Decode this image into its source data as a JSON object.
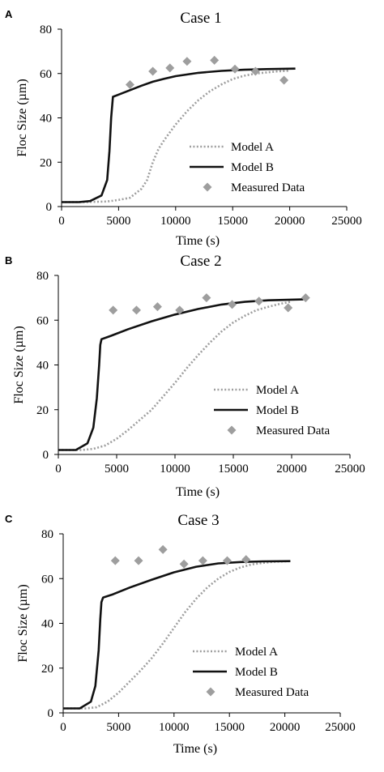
{
  "figure": {
    "colors": {
      "model_a": "#9e9e9e",
      "model_b": "#111111",
      "measured": "#9e9e9e"
    }
  },
  "chart_data": [
    {
      "panel_label": "A",
      "type": "line",
      "title": "Case 1",
      "xlabel": "Time (s)",
      "ylabel": "Floc Size (µm)",
      "xlim": [
        0,
        25000
      ],
      "ylim": [
        0,
        80
      ],
      "xticks": [
        0,
        5000,
        10000,
        15000,
        20000,
        25000
      ],
      "yticks": [
        0,
        20,
        40,
        60,
        80
      ],
      "legend_position": "bottom-right",
      "series": [
        {
          "name": "Model A",
          "kind": "line",
          "style": "dotted",
          "color": "#9e9e9e",
          "x": [
            0,
            2000,
            4000,
            5000,
            6000,
            7000,
            7500,
            8000,
            8500,
            9000,
            10000,
            11000,
            12000,
            13000,
            14000,
            15000,
            16000,
            17000,
            18000,
            19000,
            20000
          ],
          "y": [
            2,
            2,
            2.3,
            3,
            4,
            8,
            12,
            20,
            26,
            30,
            37,
            43,
            48,
            52,
            55,
            57.5,
            59,
            60,
            60.5,
            61,
            61.3
          ]
        },
        {
          "name": "Model B",
          "kind": "line",
          "style": "solid",
          "color": "#111111",
          "x": [
            0,
            1500,
            2500,
            3500,
            4000,
            4200,
            4350,
            4500,
            5000,
            6000,
            7000,
            8000,
            9000,
            10000,
            12000,
            14000,
            16000,
            18000,
            20500
          ],
          "y": [
            2,
            2,
            2.5,
            5,
            12,
            25,
            40,
            49.5,
            50.5,
            52.5,
            54.5,
            56.3,
            57.6,
            58.8,
            60.3,
            61.2,
            61.7,
            62,
            62.2
          ]
        },
        {
          "name": "Measured Data",
          "kind": "scatter",
          "marker": "diamond",
          "color": "#9e9e9e",
          "x": [
            6000,
            8000,
            9500,
            11000,
            13400,
            15200,
            17000,
            19500
          ],
          "y": [
            55,
            61,
            62.5,
            65.5,
            66,
            62,
            61,
            57
          ]
        }
      ]
    },
    {
      "panel_label": "B",
      "type": "line",
      "title": "Case 2",
      "xlabel": "Time (s)",
      "ylabel": "Floc Size (µm)",
      "xlim": [
        0,
        25000
      ],
      "ylim": [
        0,
        80
      ],
      "xticks": [
        0,
        5000,
        10000,
        15000,
        20000,
        25000
      ],
      "yticks": [
        0,
        20,
        40,
        60,
        80
      ],
      "legend_position": "bottom-right",
      "series": [
        {
          "name": "Model A",
          "kind": "line",
          "style": "dotted",
          "color": "#9e9e9e",
          "x": [
            0,
            2000,
            3000,
            4000,
            5000,
            6000,
            7000,
            8000,
            9000,
            10000,
            11000,
            12000,
            13000,
            14000,
            15000,
            16000,
            17000,
            18000,
            19000,
            20000
          ],
          "y": [
            2,
            2,
            2.5,
            4,
            7,
            11,
            15.5,
            20,
            26,
            32,
            38.5,
            44.5,
            50,
            55,
            59,
            62,
            64.5,
            66,
            67.3,
            68.3
          ]
        },
        {
          "name": "Model B",
          "kind": "line",
          "style": "solid",
          "color": "#111111",
          "x": [
            0,
            1500,
            2500,
            3000,
            3300,
            3500,
            3600,
            3700,
            4500,
            6000,
            8000,
            10000,
            12000,
            14000,
            16000,
            18000,
            21000
          ],
          "y": [
            2,
            2,
            5,
            12,
            25,
            40,
            49,
            51.5,
            53,
            56,
            59.5,
            62.5,
            65,
            67,
            68.2,
            68.9,
            69.3
          ]
        },
        {
          "name": "Measured Data",
          "kind": "scatter",
          "marker": "diamond",
          "color": "#9e9e9e",
          "x": [
            4700,
            6700,
            8500,
            10400,
            12700,
            14900,
            17200,
            19700,
            21200
          ],
          "y": [
            64.5,
            64.5,
            66,
            64.5,
            70,
            67,
            68.5,
            65.5,
            70
          ]
        }
      ]
    },
    {
      "panel_label": "C",
      "type": "line",
      "title": "Case 3",
      "xlabel": "Time (s)",
      "ylabel": "Floc Size (µm)",
      "xlim": [
        0,
        25000
      ],
      "ylim": [
        0,
        80
      ],
      "xticks": [
        0,
        5000,
        10000,
        15000,
        20000,
        25000
      ],
      "yticks": [
        0,
        20,
        40,
        60,
        80
      ],
      "legend_position": "bottom-right",
      "series": [
        {
          "name": "Model A",
          "kind": "line",
          "style": "dotted",
          "color": "#9e9e9e",
          "x": [
            0,
            2000,
            3000,
            4000,
            5000,
            6000,
            7000,
            8000,
            9000,
            10000,
            11000,
            12000,
            13000,
            14000,
            15000,
            16000,
            17000,
            18000,
            19000,
            20500
          ],
          "y": [
            2,
            2,
            2.5,
            5,
            9,
            14,
            19,
            24.5,
            31,
            38,
            45,
            51,
            56,
            60,
            63,
            65,
            66.3,
            67,
            67.5,
            67.8
          ]
        },
        {
          "name": "Model B",
          "kind": "line",
          "style": "solid",
          "color": "#111111",
          "x": [
            0,
            1500,
            2500,
            2900,
            3200,
            3350,
            3450,
            3600,
            4500,
            6000,
            8000,
            10000,
            12000,
            14000,
            16000,
            18000,
            20500
          ],
          "y": [
            2,
            2,
            5,
            12,
            28,
            42,
            49.5,
            51.5,
            53,
            56,
            59.5,
            62.8,
            65.3,
            66.8,
            67.4,
            67.7,
            67.8
          ]
        },
        {
          "name": "Measured Data",
          "kind": "scatter",
          "marker": "diamond",
          "color": "#9e9e9e",
          "x": [
            4700,
            6800,
            9000,
            10900,
            12600,
            14800,
            16500
          ],
          "y": [
            68,
            68,
            73,
            66.5,
            68,
            68,
            68.5
          ]
        }
      ]
    }
  ]
}
